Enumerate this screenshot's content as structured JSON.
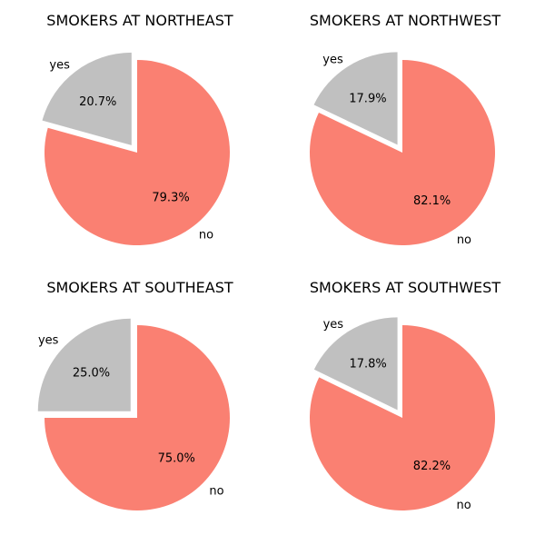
{
  "colors": {
    "no": "#fa8072",
    "yes": "#c0c0c0",
    "background": "#ffffff"
  },
  "chart_data": [
    {
      "type": "pie",
      "title": "SMOKERS AT NORTHEAST",
      "slices": [
        {
          "label": "yes",
          "value": 20.7,
          "pct_label": "20.7%",
          "exploded": true,
          "color": "#c0c0c0"
        },
        {
          "label": "no",
          "value": 79.3,
          "pct_label": "79.3%",
          "exploded": false,
          "color": "#fa8072"
        }
      ]
    },
    {
      "type": "pie",
      "title": "SMOKERS AT NORTHWEST",
      "slices": [
        {
          "label": "yes",
          "value": 17.9,
          "pct_label": "17.9%",
          "exploded": true,
          "color": "#c0c0c0"
        },
        {
          "label": "no",
          "value": 82.1,
          "pct_label": "82.1%",
          "exploded": false,
          "color": "#fa8072"
        }
      ]
    },
    {
      "type": "pie",
      "title": "SMOKERS AT SOUTHEAST",
      "slices": [
        {
          "label": "yes",
          "value": 25.0,
          "pct_label": "25.0%",
          "exploded": true,
          "color": "#c0c0c0"
        },
        {
          "label": "no",
          "value": 75.0,
          "pct_label": "75.0%",
          "exploded": false,
          "color": "#fa8072"
        }
      ]
    },
    {
      "type": "pie",
      "title": "SMOKERS AT SOUTHWEST",
      "slices": [
        {
          "label": "yes",
          "value": 17.8,
          "pct_label": "17.8%",
          "exploded": true,
          "color": "#c0c0c0"
        },
        {
          "label": "no",
          "value": 82.2,
          "pct_label": "82.2%",
          "exploded": false,
          "color": "#fa8072"
        }
      ]
    }
  ]
}
